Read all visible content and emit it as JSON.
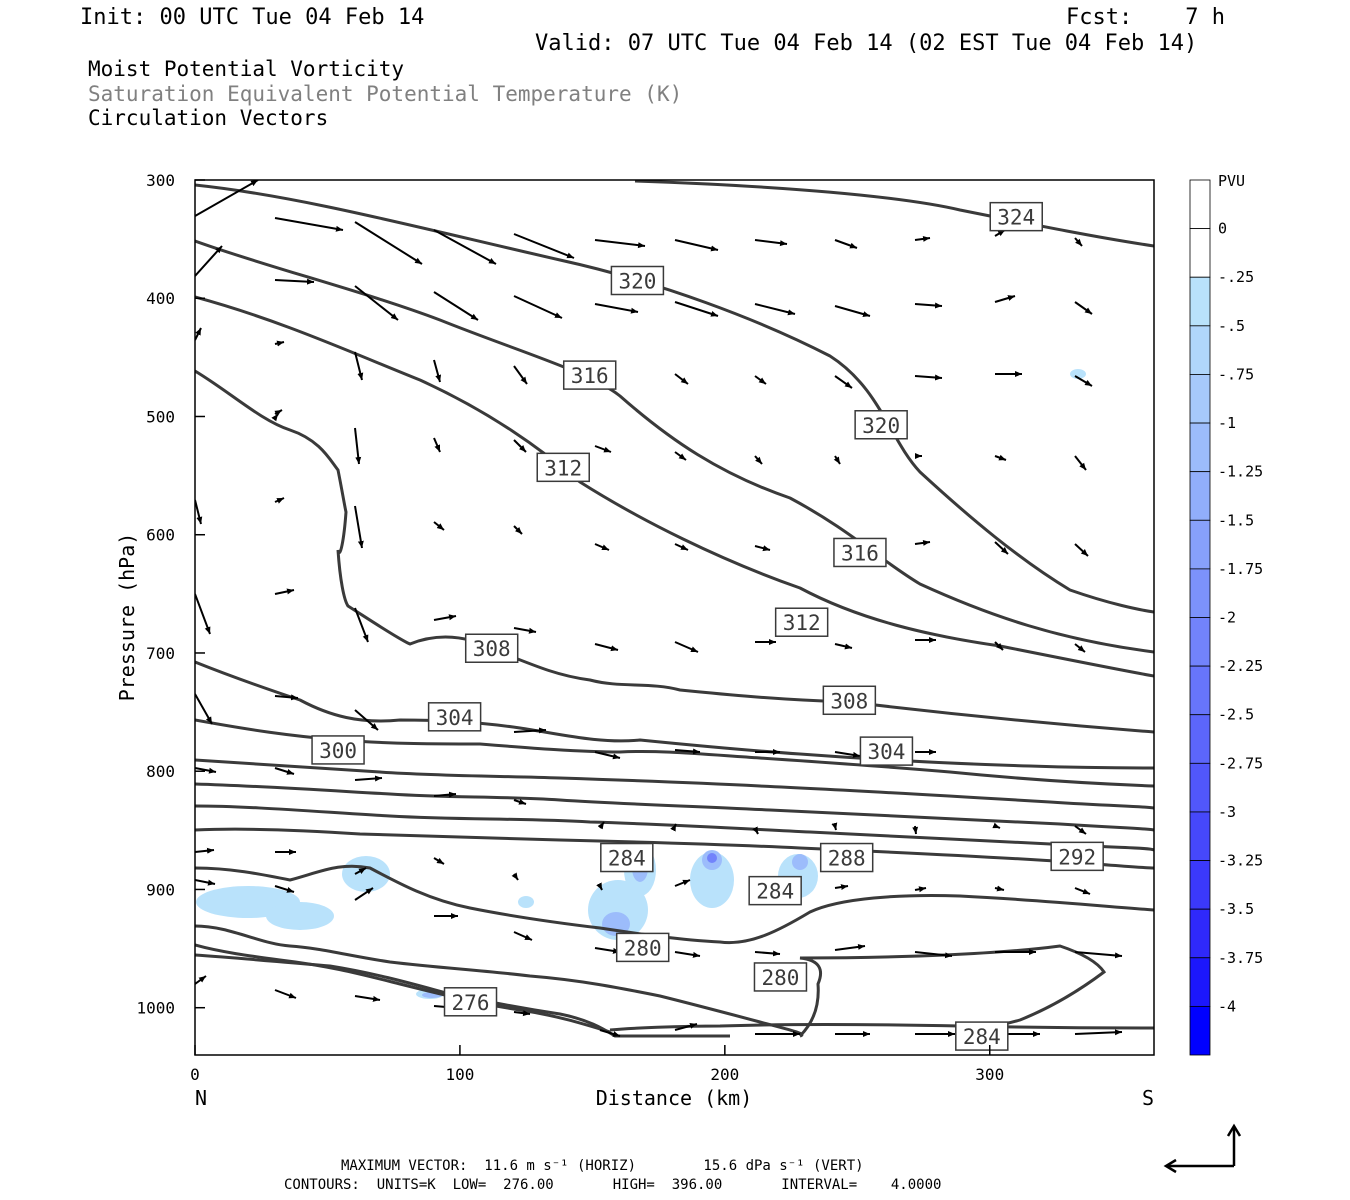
{
  "header": {
    "init": "Init: 00 UTC Tue 04 Feb 14",
    "fcst": "Fcst:    7 h",
    "valid": "Valid: 07 UTC Tue 04 Feb 14 (02 EST Tue 04 Feb 14)"
  },
  "titles": {
    "line1": "Moist Potential Vorticity",
    "line2": "Saturation Equivalent Potential Temperature (K)",
    "line3": "Circulation Vectors"
  },
  "colors": {
    "theta_contour": "#3a3a3a",
    "title_gray": "#808080",
    "mpv_light": "#b9e2fb",
    "mpv_strong": "#0000ff"
  },
  "chart_data": {
    "type": "cross-section",
    "xlabel": "Distance (km)",
    "ylabel": "Pressure (hPa)",
    "xlim": [
      0,
      362
    ],
    "ylim": [
      1040,
      300
    ],
    "x_ticks": [
      "0",
      "100",
      "200",
      "300"
    ],
    "x_tick_values": [
      0,
      100,
      200,
      300
    ],
    "y_ticks": [
      "300",
      "400",
      "500",
      "600",
      "700",
      "800",
      "900",
      "1000"
    ],
    "y_tick_values": [
      300,
      400,
      500,
      600,
      700,
      800,
      900,
      1000
    ],
    "left_end_label": "N",
    "right_end_label": "S",
    "contour_labels": [
      {
        "text": "324",
        "x": 310,
        "p": 331
      },
      {
        "text": "320",
        "x": 167,
        "p": 385
      },
      {
        "text": "316",
        "x": 149,
        "p": 465
      },
      {
        "text": "320",
        "x": 259,
        "p": 507
      },
      {
        "text": "312",
        "x": 139,
        "p": 543
      },
      {
        "text": "316",
        "x": 251,
        "p": 615
      },
      {
        "text": "312",
        "x": 229,
        "p": 674
      },
      {
        "text": "308",
        "x": 112,
        "p": 696
      },
      {
        "text": "308",
        "x": 247,
        "p": 740
      },
      {
        "text": "304",
        "x": 98,
        "p": 754
      },
      {
        "text": "300",
        "x": 54,
        "p": 782
      },
      {
        "text": "304",
        "x": 261,
        "p": 783
      },
      {
        "text": "284",
        "x": 163,
        "p": 873
      },
      {
        "text": "288",
        "x": 246,
        "p": 873
      },
      {
        "text": "292",
        "x": 333,
        "p": 872
      },
      {
        "text": "284",
        "x": 219,
        "p": 901
      },
      {
        "text": "280",
        "x": 169,
        "p": 949
      },
      {
        "text": "280",
        "x": 221,
        "p": 974
      },
      {
        "text": "276",
        "x": 104,
        "p": 995
      },
      {
        "text": "284",
        "x": 297,
        "p": 1024
      }
    ],
    "colorbar": {
      "unit": "PVU",
      "labels": [
        "0",
        "-.25",
        "-.5",
        "-.75",
        "-1",
        "-1.25",
        "-1.5",
        "-1.75",
        "-2",
        "-2.25",
        "-2.5",
        "-2.75",
        "-3",
        "-3.25",
        "-3.5",
        "-3.75",
        "-4"
      ],
      "colors": [
        "#ffffff",
        "#ffffff",
        "#b9e2fb",
        "#b0d6fb",
        "#a6c9fb",
        "#9cbcfb",
        "#91aefb",
        "#87a0fb",
        "#7c92fb",
        "#7283fb",
        "#6775fb",
        "#5c66fb",
        "#5157fb",
        "#4648fb",
        "#3b39fb",
        "#2f29fb",
        "#1c17fc",
        "#0000ff"
      ]
    }
  },
  "footer": {
    "line1": "MAXIMUM VECTOR:  11.6 m s⁻¹ (HORIZ)        15.6 dPa s⁻¹ (VERT)",
    "line2": "CONTOURS:  UNITS=K  LOW=  276.00       HIGH=  396.00       INTERVAL=    4.0000"
  }
}
